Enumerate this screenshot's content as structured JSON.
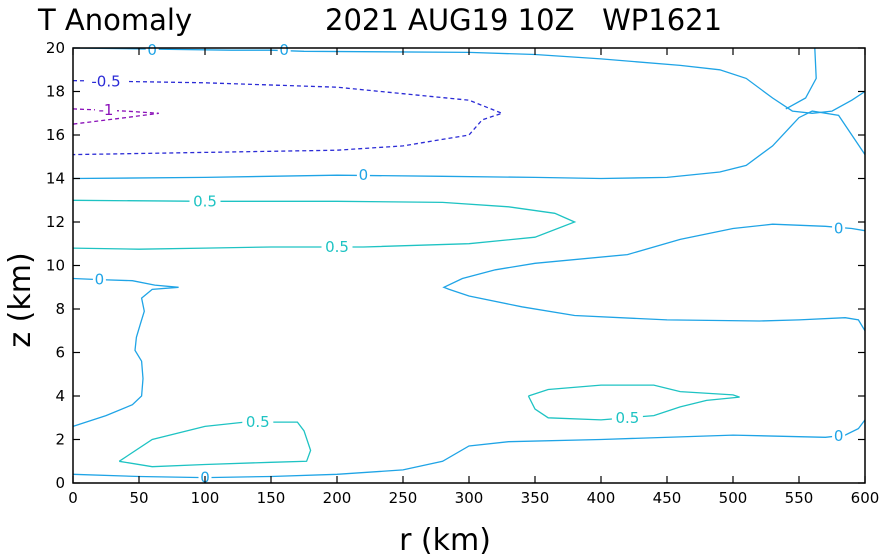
{
  "chart_data": {
    "type": "contour",
    "title_left": "T Anomaly",
    "title_right": "2021 AUG19 10Z   WP1621",
    "xlabel": "r (km)",
    "ylabel": "z (km)",
    "xlim": [
      0,
      600
    ],
    "ylim": [
      0,
      20
    ],
    "xticks": [
      0,
      50,
      100,
      150,
      200,
      250,
      300,
      350,
      400,
      450,
      500,
      550,
      600
    ],
    "yticks": [
      0,
      2,
      4,
      6,
      8,
      10,
      12,
      14,
      16,
      18,
      20
    ],
    "grid": false,
    "colors": {
      "zero": "#1fa4e6",
      "pos_half": "#1ec3c3",
      "neg_half": "#2b2bd6",
      "neg_one": "#8a10b8"
    },
    "contours": [
      {
        "level": 0,
        "color": "zero",
        "dash": false,
        "points": [
          [
            0,
            0.4
          ],
          [
            50,
            0.3
          ],
          [
            100,
            0.25
          ],
          [
            150,
            0.3
          ],
          [
            200,
            0.4
          ],
          [
            250,
            0.6
          ],
          [
            280,
            1.0
          ],
          [
            300,
            1.7
          ],
          [
            330,
            1.9
          ],
          [
            400,
            2.0
          ],
          [
            500,
            2.2
          ],
          [
            570,
            2.1
          ],
          [
            585,
            2.2
          ],
          [
            595,
            2.5
          ],
          [
            600,
            2.9
          ]
        ]
      },
      {
        "level": 0,
        "color": "zero",
        "dash": false,
        "points": [
          [
            0,
            2.6
          ],
          [
            25,
            3.1
          ],
          [
            45,
            3.6
          ],
          [
            52,
            4.0
          ],
          [
            53,
            4.8
          ],
          [
            52,
            5.6
          ],
          [
            47,
            6.1
          ],
          [
            48,
            6.7
          ],
          [
            51,
            7.3
          ],
          [
            54,
            7.9
          ],
          [
            52,
            8.5
          ],
          [
            60,
            8.9
          ],
          [
            80,
            9.0
          ],
          [
            62,
            9.1
          ],
          [
            45,
            9.3
          ],
          [
            20,
            9.35
          ],
          [
            0,
            9.4
          ]
        ]
      },
      {
        "level": 0,
        "color": "zero",
        "dash": false,
        "points": [
          [
            600,
            7.0
          ],
          [
            595,
            7.5
          ],
          [
            585,
            7.6
          ],
          [
            550,
            7.5
          ],
          [
            520,
            7.45
          ],
          [
            450,
            7.5
          ],
          [
            380,
            7.7
          ],
          [
            340,
            8.1
          ],
          [
            300,
            8.6
          ],
          [
            285,
            8.9
          ],
          [
            281,
            9.0
          ],
          [
            295,
            9.4
          ],
          [
            320,
            9.8
          ],
          [
            350,
            10.1
          ],
          [
            420,
            10.5
          ],
          [
            460,
            11.2
          ],
          [
            500,
            11.7
          ],
          [
            530,
            11.9
          ],
          [
            570,
            11.8
          ],
          [
            590,
            11.7
          ],
          [
            600,
            11.6
          ]
        ]
      },
      {
        "level": 0,
        "color": "zero",
        "dash": false,
        "points": [
          [
            0,
            14.0
          ],
          [
            100,
            14.05
          ],
          [
            200,
            14.15
          ],
          [
            280,
            14.1
          ],
          [
            350,
            14.05
          ],
          [
            400,
            14.0
          ],
          [
            450,
            14.05
          ],
          [
            490,
            14.3
          ],
          [
            510,
            14.6
          ],
          [
            530,
            15.5
          ],
          [
            550,
            16.8
          ],
          [
            560,
            17.1
          ],
          [
            580,
            16.9
          ],
          [
            590,
            16.0
          ],
          [
            600,
            15.1
          ]
        ]
      },
      {
        "level": 0,
        "color": "zero",
        "dash": false,
        "points": [
          [
            0,
            20.0
          ],
          [
            60,
            19.95
          ],
          [
            120,
            19.9
          ],
          [
            150,
            19.9
          ],
          [
            175,
            19.85
          ],
          [
            300,
            19.8
          ],
          [
            350,
            19.7
          ],
          [
            400,
            19.5
          ],
          [
            460,
            19.2
          ],
          [
            490,
            19.0
          ],
          [
            510,
            18.6
          ],
          [
            530,
            17.7
          ],
          [
            545,
            17.1
          ],
          [
            560,
            17.0
          ],
          [
            575,
            17.1
          ],
          [
            590,
            17.6
          ],
          [
            600,
            18.0
          ]
        ]
      },
      {
        "level": 0,
        "color": "zero",
        "dash": false,
        "points": [
          [
            562,
            20.0
          ],
          [
            563,
            18.6
          ],
          [
            555,
            17.7
          ],
          [
            540,
            17.2
          ]
        ]
      },
      {
        "level": 0.5,
        "color": "pos_half",
        "dash": false,
        "points": [
          [
            0,
            13.0
          ],
          [
            100,
            12.95
          ],
          [
            200,
            12.95
          ],
          [
            280,
            12.9
          ],
          [
            330,
            12.7
          ],
          [
            365,
            12.4
          ],
          [
            380,
            12.0
          ],
          [
            350,
            11.3
          ],
          [
            300,
            11.0
          ],
          [
            220,
            10.85
          ],
          [
            150,
            10.85
          ],
          [
            100,
            10.8
          ],
          [
            50,
            10.75
          ],
          [
            0,
            10.8
          ]
        ]
      },
      {
        "level": 0.5,
        "color": "pos_half",
        "dash": false,
        "points": [
          [
            35,
            1.0
          ],
          [
            60,
            2.0
          ],
          [
            100,
            2.6
          ],
          [
            130,
            2.8
          ],
          [
            170,
            2.8
          ],
          [
            175,
            2.4
          ],
          [
            180,
            1.5
          ],
          [
            177,
            1.0
          ],
          [
            150,
            0.95
          ],
          [
            100,
            0.85
          ],
          [
            60,
            0.75
          ],
          [
            35,
            1.0
          ]
        ]
      },
      {
        "level": 0.5,
        "color": "pos_half",
        "dash": false,
        "points": [
          [
            345,
            4.0
          ],
          [
            360,
            4.3
          ],
          [
            400,
            4.5
          ],
          [
            440,
            4.5
          ],
          [
            460,
            4.2
          ],
          [
            500,
            4.05
          ],
          [
            505,
            3.95
          ],
          [
            480,
            3.8
          ],
          [
            460,
            3.5
          ],
          [
            440,
            3.1
          ],
          [
            400,
            2.9
          ],
          [
            360,
            3.0
          ],
          [
            350,
            3.4
          ],
          [
            345,
            4.0
          ]
        ]
      },
      {
        "level": -0.5,
        "color": "neg_half",
        "dash": true,
        "points": [
          [
            0,
            18.5
          ],
          [
            100,
            18.4
          ],
          [
            200,
            18.2
          ],
          [
            300,
            17.6
          ],
          [
            325,
            17.0
          ],
          [
            310,
            16.7
          ],
          [
            300,
            16.0
          ],
          [
            250,
            15.5
          ],
          [
            200,
            15.3
          ],
          [
            100,
            15.2
          ],
          [
            0,
            15.1
          ]
        ]
      },
      {
        "level": -1,
        "color": "neg_one",
        "dash": true,
        "points": [
          [
            0,
            17.2
          ],
          [
            40,
            17.1
          ],
          [
            65,
            17.0
          ],
          [
            40,
            16.8
          ],
          [
            0,
            16.5
          ]
        ]
      }
    ],
    "labels": [
      {
        "text": "0",
        "x": 60,
        "y": 19.9,
        "color": "zero"
      },
      {
        "text": "0",
        "x": 160,
        "y": 19.9,
        "color": "zero"
      },
      {
        "text": "-0.5",
        "x": 25,
        "y": 18.45,
        "color": "neg_half"
      },
      {
        "text": "-1",
        "x": 25,
        "y": 17.15,
        "color": "neg_one"
      },
      {
        "text": "0",
        "x": 220,
        "y": 14.15,
        "color": "zero"
      },
      {
        "text": "0.5",
        "x": 100,
        "y": 12.95,
        "color": "pos_half"
      },
      {
        "text": "0.5",
        "x": 200,
        "y": 10.85,
        "color": "pos_half"
      },
      {
        "text": "0",
        "x": 20,
        "y": 9.35,
        "color": "zero"
      },
      {
        "text": "0",
        "x": 580,
        "y": 11.7,
        "color": "zero"
      },
      {
        "text": "0.5",
        "x": 140,
        "y": 2.8,
        "color": "pos_half"
      },
      {
        "text": "0.5",
        "x": 420,
        "y": 3.0,
        "color": "pos_half"
      },
      {
        "text": "0",
        "x": 100,
        "y": 0.25,
        "color": "zero"
      },
      {
        "text": "0",
        "x": 580,
        "y": 2.15,
        "color": "zero"
      }
    ]
  }
}
